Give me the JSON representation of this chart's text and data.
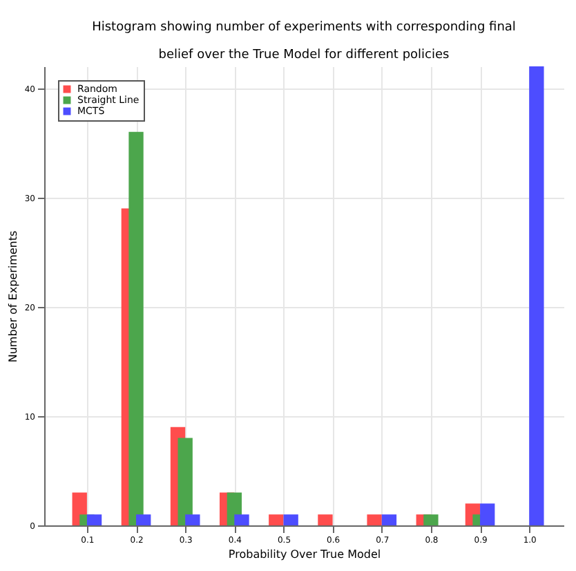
{
  "chart_data": {
    "type": "bar",
    "title": [
      "Histogram showing number of experiments with corresponding final",
      "belief over the True Model for different policies"
    ],
    "xlabel": "Probability Over True Model",
    "ylabel": "Number of Experiments",
    "x": [
      0.1,
      0.2,
      0.3,
      0.4,
      0.5,
      0.6,
      0.7,
      0.8,
      0.9,
      1.0
    ],
    "series": [
      {
        "name": "Random",
        "color": "#ff4d4d",
        "values": [
          3,
          29,
          9,
          3,
          1,
          1,
          1,
          1,
          2,
          0
        ]
      },
      {
        "name": "Straight Line",
        "color": "#4ca64c",
        "values": [
          1,
          36,
          8,
          3,
          0,
          0,
          0,
          1,
          1,
          0
        ]
      },
      {
        "name": "MCTS",
        "color": "#4d4dff",
        "values": [
          1,
          1,
          1,
          1,
          1,
          0,
          1,
          0,
          2,
          42
        ]
      }
    ],
    "xlim": [
      0.013,
      1.07
    ],
    "xticks": [
      0.1,
      0.2,
      0.3,
      0.4,
      0.5,
      0.6,
      0.7,
      0.8,
      0.9,
      {
        "value": 1,
        "label": "1.0"
      }
    ],
    "ylim": [
      0,
      42
    ],
    "yticks": [
      0,
      10,
      20,
      30,
      40
    ],
    "grid": true,
    "legend": "top left"
  }
}
